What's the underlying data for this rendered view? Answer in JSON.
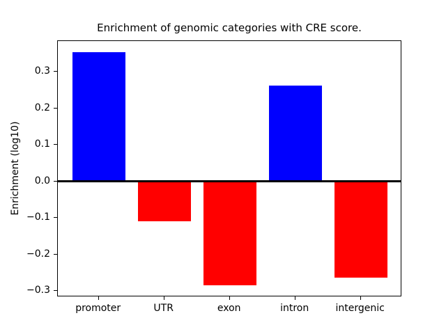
{
  "chart_data": {
    "type": "bar",
    "title": "Enrichment of genomic categories with CRE score.",
    "ylabel": "Enrichment (log10)",
    "xlabel": "",
    "categories": [
      "promoter",
      "UTR",
      "exon",
      "intron",
      "intergenic"
    ],
    "values": [
      0.354,
      -0.11,
      -0.285,
      0.262,
      -0.263
    ],
    "bar_colors": [
      "#0000ff",
      "#ff0000",
      "#ff0000",
      "#0000ff",
      "#ff0000"
    ],
    "positive_color": "#0000ff",
    "negative_color": "#ff0000",
    "ylim": [
      -0.317,
      0.384
    ],
    "yticks": [
      0.3,
      0.2,
      0.1,
      0.0,
      -0.1,
      -0.2,
      -0.3
    ],
    "ytick_labels": [
      "0.3",
      "0.2",
      "0.1",
      "0.0",
      "−0.1",
      "−0.2",
      "−0.3"
    ],
    "grid": false,
    "legend": false,
    "zero_line": true,
    "background": "#ffffff",
    "axis_color": "#000000"
  }
}
